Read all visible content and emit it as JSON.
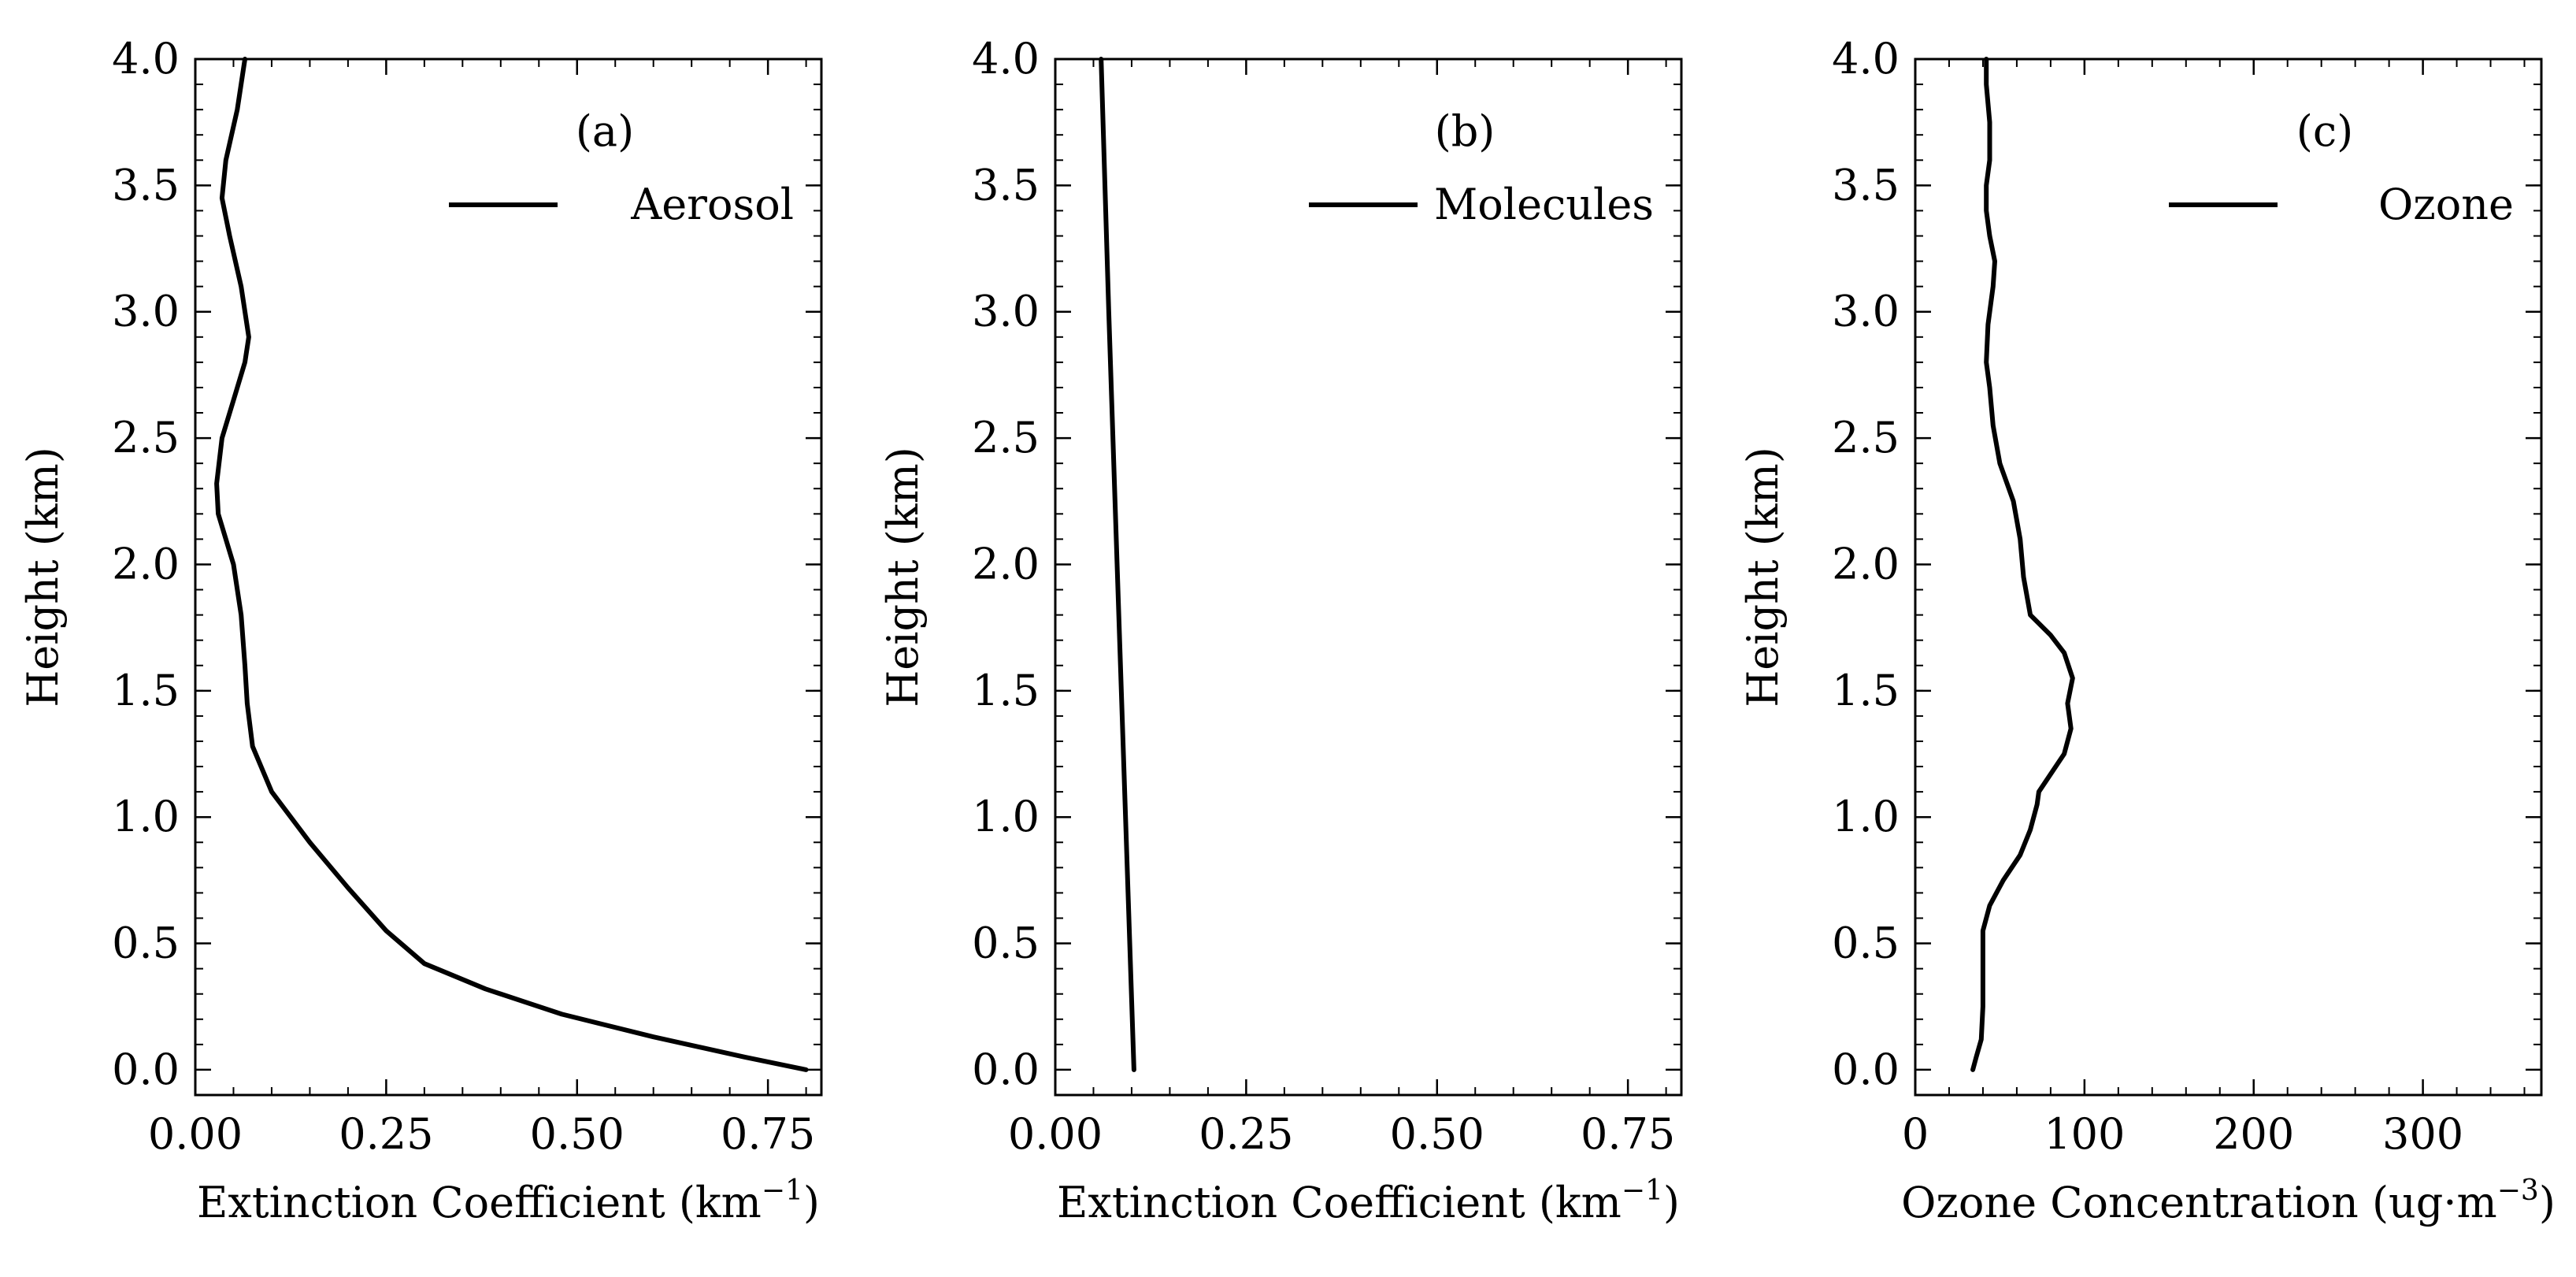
{
  "colors": {
    "line": "#000000",
    "background": "#ffffff",
    "axes": "#000000"
  },
  "chart_data": [
    {
      "type": "line",
      "panel_label": "(a)",
      "legend": [
        "Aerosol"
      ],
      "legend_position": "top-right",
      "xlabel": "Extinction Coefficient (km",
      "xlabel_sup": "−1",
      "xlabel_end": ")",
      "ylabel": "Height (km)",
      "xlim": [
        0.0,
        0.82
      ],
      "ylim": [
        -0.1,
        4.0
      ],
      "xticks": [
        0.0,
        0.25,
        0.5,
        0.75
      ],
      "xtick_labels": [
        "0.00",
        "0.25",
        "0.50",
        "0.75"
      ],
      "xminor_step": 0.05,
      "yticks": [
        0.0,
        0.5,
        1.0,
        1.5,
        2.0,
        2.5,
        3.0,
        3.5,
        4.0
      ],
      "ytick_labels": [
        "0.0",
        "0.5",
        "1.0",
        "1.5",
        "2.0",
        "2.5",
        "3.0",
        "3.5",
        "4.0"
      ],
      "yminor_step": 0.1,
      "grid": false,
      "series": [
        {
          "name": "Aerosol",
          "x": [
            0.8,
            0.72,
            0.6,
            0.48,
            0.38,
            0.3,
            0.25,
            0.2,
            0.15,
            0.1,
            0.075,
            0.068,
            0.065,
            0.06,
            0.05,
            0.03,
            0.028,
            0.035,
            0.05,
            0.065,
            0.07,
            0.06,
            0.045,
            0.035,
            0.04,
            0.055,
            0.065
          ],
          "y": [
            0.0,
            0.05,
            0.13,
            0.22,
            0.32,
            0.42,
            0.55,
            0.72,
            0.9,
            1.1,
            1.28,
            1.45,
            1.6,
            1.8,
            2.0,
            2.2,
            2.32,
            2.5,
            2.65,
            2.8,
            2.9,
            3.1,
            3.3,
            3.45,
            3.6,
            3.8,
            4.0
          ]
        }
      ]
    },
    {
      "type": "line",
      "panel_label": "(b)",
      "legend": [
        "Molecules"
      ],
      "legend_position": "top-right",
      "xlabel": "Extinction Coefficient (km",
      "xlabel_sup": "−1",
      "xlabel_end": ")",
      "ylabel": "Height (km)",
      "xlim": [
        0.0,
        0.82
      ],
      "ylim": [
        -0.1,
        4.0
      ],
      "xticks": [
        0.0,
        0.25,
        0.5,
        0.75
      ],
      "xtick_labels": [
        "0.00",
        "0.25",
        "0.50",
        "0.75"
      ],
      "xminor_step": 0.05,
      "yticks": [
        0.0,
        0.5,
        1.0,
        1.5,
        2.0,
        2.5,
        3.0,
        3.5,
        4.0
      ],
      "ytick_labels": [
        "0.0",
        "0.5",
        "1.0",
        "1.5",
        "2.0",
        "2.5",
        "3.0",
        "3.5",
        "4.0"
      ],
      "yminor_step": 0.1,
      "grid": false,
      "series": [
        {
          "name": "Molecules",
          "x": [
            0.103,
            0.092,
            0.081,
            0.07,
            0.06
          ],
          "y": [
            0.0,
            1.0,
            2.0,
            3.0,
            4.0
          ]
        }
      ]
    },
    {
      "type": "line",
      "panel_label": "(c)",
      "legend": [
        "Ozone"
      ],
      "legend_position": "top-right",
      "xlabel": "Ozone Concentration (ug·m",
      "xlabel_sup": "−3",
      "xlabel_end": ")",
      "ylabel": "Height (km)",
      "xlim": [
        0,
        370
      ],
      "ylim": [
        -0.1,
        4.0
      ],
      "xticks": [
        0,
        100,
        200,
        300
      ],
      "xtick_labels": [
        "0",
        "100",
        "200",
        "300"
      ],
      "xminor_step": 20,
      "yticks": [
        0.0,
        0.5,
        1.0,
        1.5,
        2.0,
        2.5,
        3.0,
        3.5,
        4.0
      ],
      "ytick_labels": [
        "0.0",
        "0.5",
        "1.0",
        "1.5",
        "2.0",
        "2.5",
        "3.0",
        "3.5",
        "4.0"
      ],
      "yminor_step": 0.1,
      "grid": false,
      "series": [
        {
          "name": "Ozone",
          "x": [
            34,
            36,
            39,
            40,
            40,
            40,
            44,
            52,
            62,
            68,
            72,
            73,
            78,
            88,
            92,
            90,
            93,
            88,
            80,
            68,
            64,
            62,
            58,
            50,
            46,
            44,
            42,
            43,
            46,
            47,
            44,
            42,
            42,
            44,
            44,
            42,
            42
          ],
          "y": [
            0.0,
            0.05,
            0.12,
            0.25,
            0.45,
            0.55,
            0.65,
            0.75,
            0.85,
            0.95,
            1.05,
            1.1,
            1.15,
            1.25,
            1.35,
            1.45,
            1.55,
            1.65,
            1.72,
            1.8,
            1.95,
            2.1,
            2.25,
            2.4,
            2.55,
            2.7,
            2.8,
            2.95,
            3.1,
            3.2,
            3.3,
            3.4,
            3.5,
            3.6,
            3.75,
            3.9,
            4.0
          ]
        }
      ]
    }
  ]
}
